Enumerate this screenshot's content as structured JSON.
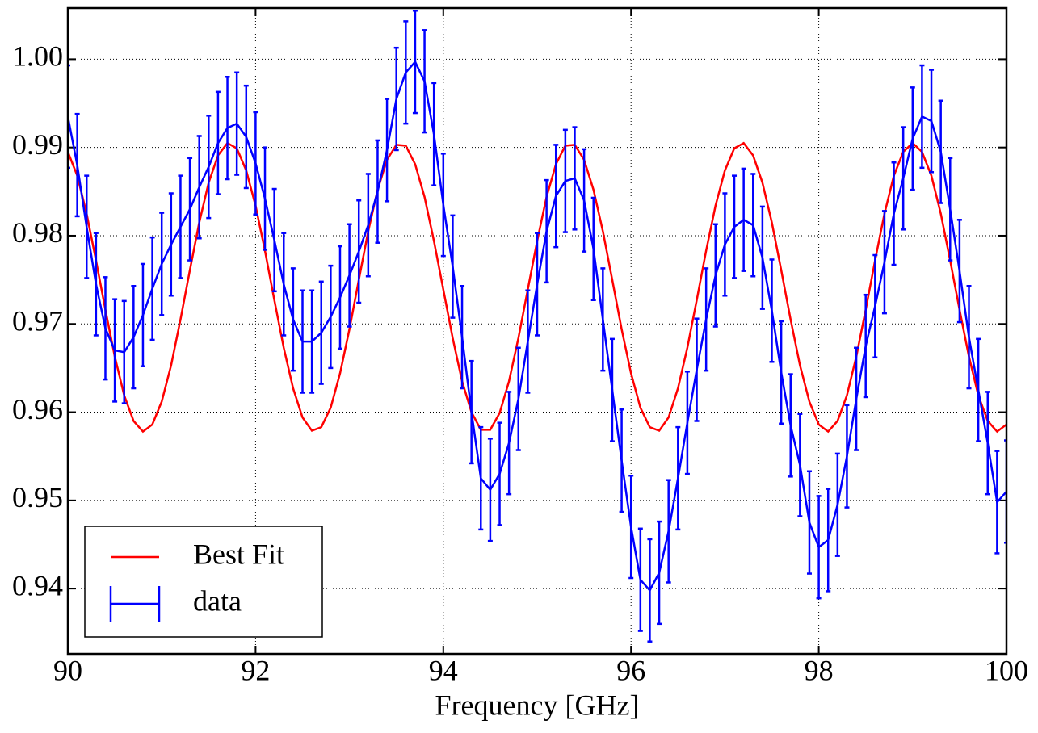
{
  "chart_data": {
    "type": "line",
    "xlabel": "Frequency [GHz]",
    "x": [
      90.0,
      90.1,
      90.2,
      90.3,
      90.4,
      90.5,
      90.6,
      90.7,
      90.8,
      90.9,
      91.0,
      91.1,
      91.2,
      91.3,
      91.4,
      91.5,
      91.6,
      91.7,
      91.8,
      91.9,
      92.0,
      92.1,
      92.2,
      92.3,
      92.4,
      92.5,
      92.6,
      92.7,
      92.8,
      92.9,
      93.0,
      93.1,
      93.2,
      93.3,
      93.4,
      93.5,
      93.6,
      93.7,
      93.8,
      93.9,
      94.0,
      94.1,
      94.2,
      94.3,
      94.4,
      94.5,
      94.6,
      94.7,
      94.8,
      94.9,
      95.0,
      95.1,
      95.2,
      95.3,
      95.4,
      95.5,
      95.6,
      95.7,
      95.8,
      95.9,
      96.0,
      96.1,
      96.2,
      96.3,
      96.4,
      96.5,
      96.6,
      96.7,
      96.8,
      96.9,
      97.0,
      97.1,
      97.2,
      97.3,
      97.4,
      97.5,
      97.6,
      97.7,
      97.8,
      97.9,
      98.0,
      98.1,
      98.2,
      98.3,
      98.4,
      98.5,
      98.6,
      98.7,
      98.8,
      98.9,
      99.0,
      99.1,
      99.2,
      99.3,
      99.4,
      99.5,
      99.6,
      99.7,
      99.8,
      99.9,
      100.0
    ],
    "series": [
      {
        "name": "Best Fit",
        "color": "#ff0000",
        "values": [
          0.9895,
          0.9868,
          0.9825,
          0.9772,
          0.9716,
          0.9663,
          0.9619,
          0.959,
          0.9578,
          0.9586,
          0.9612,
          0.9653,
          0.9705,
          0.9761,
          0.9815,
          0.986,
          0.9891,
          0.9905,
          0.9899,
          0.9874,
          0.9834,
          0.9783,
          0.9727,
          0.9673,
          0.9627,
          0.9594,
          0.9579,
          0.9583,
          0.9605,
          0.9644,
          0.9694,
          0.975,
          0.9805,
          0.9852,
          0.9886,
          0.9903,
          0.9902,
          0.9881,
          0.9844,
          0.9794,
          0.9739,
          0.9684,
          0.9635,
          0.96,
          0.958,
          0.958,
          0.9599,
          0.9635,
          0.9684,
          0.9739,
          0.9794,
          0.9844,
          0.9881,
          0.9902,
          0.9903,
          0.9886,
          0.9852,
          0.9805,
          0.975,
          0.9694,
          0.9644,
          0.9605,
          0.9583,
          0.9579,
          0.9594,
          0.9627,
          0.9673,
          0.9727,
          0.9783,
          0.9834,
          0.9874,
          0.9899,
          0.9905,
          0.9891,
          0.986,
          0.9815,
          0.9761,
          0.9705,
          0.9653,
          0.9612,
          0.9586,
          0.9578,
          0.959,
          0.9619,
          0.9663,
          0.9716,
          0.9772,
          0.9825,
          0.9868,
          0.9895,
          0.9905,
          0.9895,
          0.9868,
          0.9825,
          0.9772,
          0.9716,
          0.9663,
          0.9619,
          0.959,
          0.9578,
          0.9586
        ]
      },
      {
        "name": "data",
        "color": "#0000ff",
        "values": [
          0.9935,
          0.988,
          0.981,
          0.9745,
          0.9695,
          0.967,
          0.9668,
          0.9685,
          0.971,
          0.974,
          0.9768,
          0.979,
          0.981,
          0.983,
          0.9855,
          0.9878,
          0.9905,
          0.9922,
          0.9927,
          0.9912,
          0.9882,
          0.9842,
          0.9795,
          0.9745,
          0.9705,
          0.968,
          0.968,
          0.969,
          0.9708,
          0.973,
          0.9755,
          0.9782,
          0.9812,
          0.985,
          0.9897,
          0.9955,
          0.9985,
          0.9997,
          0.9975,
          0.9915,
          0.9835,
          0.9765,
          0.9685,
          0.96,
          0.9525,
          0.9512,
          0.953,
          0.9565,
          0.9615,
          0.968,
          0.9745,
          0.9805,
          0.9845,
          0.9862,
          0.9865,
          0.984,
          0.9785,
          0.9705,
          0.9625,
          0.9545,
          0.947,
          0.941,
          0.9398,
          0.9418,
          0.9465,
          0.9525,
          0.9588,
          0.9648,
          0.9705,
          0.9755,
          0.979,
          0.981,
          0.9818,
          0.9812,
          0.9775,
          0.9715,
          0.9645,
          0.9585,
          0.954,
          0.9475,
          0.9447,
          0.9455,
          0.9495,
          0.955,
          0.9615,
          0.9675,
          0.972,
          0.977,
          0.9825,
          0.9865,
          0.991,
          0.9935,
          0.993,
          0.9895,
          0.983,
          0.976,
          0.9685,
          0.9625,
          0.9565,
          0.9498,
          0.951
        ],
        "errors": [
          0.0058,
          0.0058,
          0.0058,
          0.0058,
          0.0058,
          0.0058,
          0.0058,
          0.0058,
          0.0058,
          0.0058,
          0.0058,
          0.0058,
          0.0058,
          0.0058,
          0.0058,
          0.0058,
          0.0058,
          0.0058,
          0.0058,
          0.0058,
          0.0058,
          0.0058,
          0.0058,
          0.0058,
          0.0058,
          0.0058,
          0.0058,
          0.0058,
          0.0058,
          0.0058,
          0.0058,
          0.0058,
          0.0058,
          0.0058,
          0.0058,
          0.0058,
          0.0058,
          0.0058,
          0.0058,
          0.0058,
          0.0058,
          0.0058,
          0.0058,
          0.0058,
          0.0058,
          0.0058,
          0.0058,
          0.0058,
          0.0058,
          0.0058,
          0.0058,
          0.0058,
          0.0058,
          0.0058,
          0.0058,
          0.0058,
          0.0058,
          0.0058,
          0.0058,
          0.0058,
          0.0058,
          0.0058,
          0.0058,
          0.0058,
          0.0058,
          0.0058,
          0.0058,
          0.0058,
          0.0058,
          0.0058,
          0.0058,
          0.0058,
          0.0058,
          0.0058,
          0.0058,
          0.0058,
          0.0058,
          0.0058,
          0.0058,
          0.0058,
          0.0058,
          0.0058,
          0.0058,
          0.0058,
          0.0058,
          0.0058,
          0.0058,
          0.0058,
          0.0058,
          0.0058,
          0.0058,
          0.0058,
          0.0058,
          0.0058,
          0.0058,
          0.0058,
          0.0058,
          0.0058,
          0.0058,
          0.0058,
          0.0058
        ]
      }
    ],
    "xlim": [
      90,
      100
    ],
    "ylim": [
      0.9326,
      1.0058
    ],
    "xticks": [
      90,
      92,
      94,
      96,
      98,
      100
    ],
    "yticks": [
      0.94,
      0.95,
      0.96,
      0.97,
      0.98,
      0.99,
      {
        "value": 1,
        "label": "1.00"
      }
    ],
    "grid": true,
    "legend": "lower left"
  }
}
